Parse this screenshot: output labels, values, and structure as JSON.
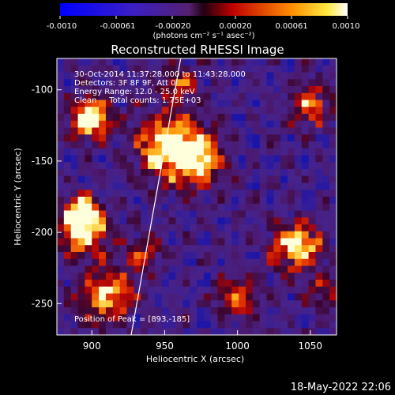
{
  "colorbar": {
    "ticks": [
      "-0.0010",
      "-0.00061",
      "-0.00020",
      "0.00020",
      "0.00061",
      "0.0010"
    ],
    "unit_label": "(photons cm⁻² s⁻¹ asec⁻²)"
  },
  "chart_data": {
    "type": "heatmap",
    "title": "Reconstructed RHESSI Image",
    "xlabel": "Heliocentric X (arcsec)",
    "ylabel": "Heliocentric Y (arcsec)",
    "xlim": [
      876,
      1068
    ],
    "ylim": [
      -272,
      -78
    ],
    "x_ticks": [
      "900",
      "950",
      "1000",
      "1050"
    ],
    "y_ticks": [
      "-100",
      "-150",
      "-200",
      "-250"
    ],
    "colormap": "rainbow-like (blue-purple-red-orange-yellow-white)",
    "color_range": [
      -0.001,
      0.001
    ],
    "annotations": [
      "30-Oct-2014 11:37:28.000 to 11:43:28.000",
      "Detectors: 3F 8F 9F, Att 0",
      "Energy Range: 12.0 - 25.0 keV",
      "Clean     Total counts: 1.75E+03"
    ],
    "peak_label": "Position of Peak = [893,-185]",
    "peak_position": [
      893,
      -185
    ],
    "limb_line": {
      "x": [
        927,
        961
      ],
      "y": [
        -272,
        -78
      ]
    }
  },
  "footer": {
    "date": "18-May-2022 22:06"
  }
}
